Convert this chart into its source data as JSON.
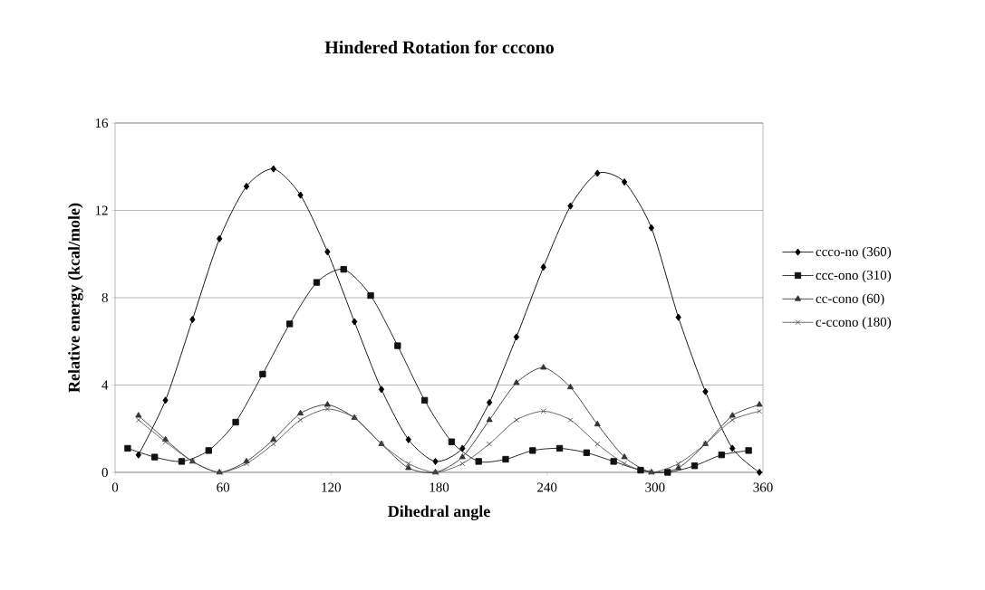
{
  "chart_data": {
    "type": "line",
    "title": "Hindered Rotation for cccono",
    "xlabel": "Dihedral angle",
    "ylabel": "Relative energy (kcal/mole)",
    "xlim": [
      0,
      360
    ],
    "xticks": [
      0,
      60,
      120,
      180,
      240,
      300,
      360
    ],
    "ylim": [
      0,
      16
    ],
    "yticks": [
      0,
      4,
      8,
      12,
      16
    ],
    "grid": "y",
    "legend": "right",
    "line_style": "solid",
    "series": [
      {
        "name": "ccco-no (360)",
        "color": "#000000",
        "marker": "diamond",
        "x": [
          13,
          28,
          43,
          58,
          73,
          88,
          103,
          118,
          133,
          148,
          163,
          178,
          193,
          208,
          223,
          238,
          253,
          268,
          283,
          298,
          313,
          328,
          343,
          358
        ],
        "values": [
          0.8,
          3.3,
          7.0,
          10.7,
          13.1,
          13.9,
          12.7,
          10.1,
          6.9,
          3.8,
          1.5,
          0.5,
          1.1,
          3.2,
          6.2,
          9.4,
          12.2,
          13.7,
          13.3,
          11.2,
          7.1,
          3.7,
          1.1,
          0.0
        ]
      },
      {
        "name": "ccc-ono (310)",
        "color": "#111111",
        "marker": "square",
        "x": [
          7,
          22,
          37,
          52,
          67,
          82,
          97,
          112,
          127,
          142,
          157,
          172,
          187,
          202,
          217,
          232,
          247,
          262,
          277,
          292,
          307,
          322,
          337,
          352
        ],
        "values": [
          1.1,
          0.7,
          0.5,
          1.0,
          2.3,
          4.5,
          6.8,
          8.7,
          9.3,
          8.1,
          5.8,
          3.3,
          1.4,
          0.5,
          0.6,
          1.0,
          1.1,
          0.9,
          0.5,
          0.1,
          0.0,
          0.3,
          0.8,
          1.0
        ]
      },
      {
        "name": "cc-cono (60)",
        "color": "#333333",
        "marker": "triangle",
        "x": [
          13,
          28,
          43,
          58,
          73,
          88,
          103,
          118,
          133,
          148,
          163,
          178,
          193,
          208,
          223,
          238,
          253,
          268,
          283,
          298,
          313,
          328,
          343,
          358
        ],
        "values": [
          2.6,
          1.5,
          0.5,
          0.0,
          0.5,
          1.5,
          2.7,
          3.1,
          2.5,
          1.3,
          0.2,
          0.0,
          0.7,
          2.4,
          4.1,
          4.8,
          3.9,
          2.2,
          0.7,
          0.0,
          0.2,
          1.3,
          2.6,
          3.1
        ]
      },
      {
        "name": "c-ccono (180)",
        "color": "#555555",
        "marker": "cross",
        "x": [
          13,
          28,
          43,
          58,
          73,
          88,
          103,
          118,
          133,
          148,
          163,
          178,
          193,
          208,
          223,
          238,
          253,
          268,
          283,
          298,
          313,
          328,
          343,
          358
        ],
        "values": [
          2.4,
          1.4,
          0.5,
          0.0,
          0.4,
          1.3,
          2.4,
          2.9,
          2.5,
          1.3,
          0.4,
          0.0,
          0.4,
          1.3,
          2.4,
          2.8,
          2.4,
          1.3,
          0.4,
          0.0,
          0.4,
          1.3,
          2.4,
          2.8
        ]
      }
    ]
  }
}
